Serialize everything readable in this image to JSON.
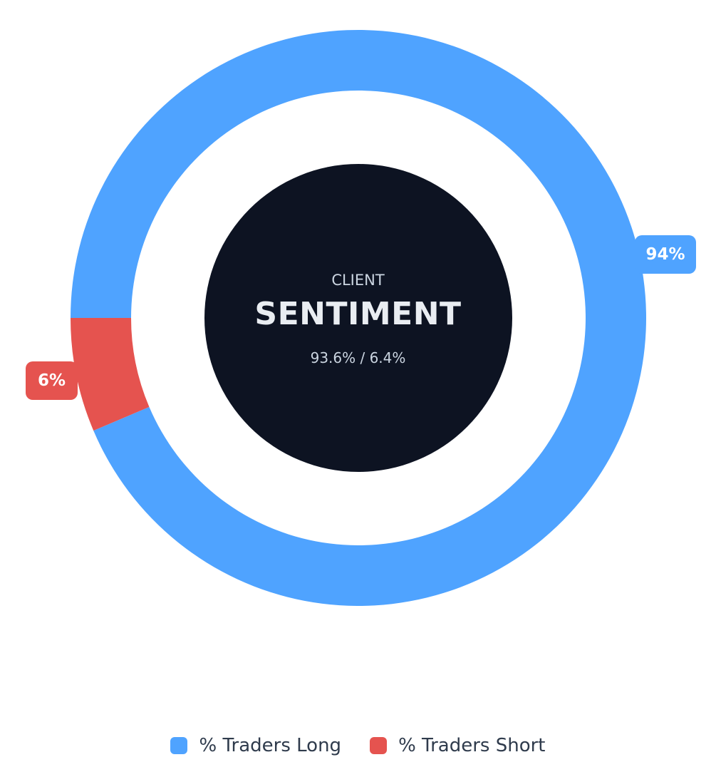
{
  "chart_data": {
    "type": "pie",
    "donut": true,
    "categories": [
      "% Traders Long",
      "% Traders Short"
    ],
    "values": [
      93.6,
      6.4
    ],
    "data_labels": [
      "94%",
      "6%"
    ],
    "colors": [
      "#4fa3ff",
      "#e5534f"
    ],
    "legend_position": "bottom",
    "center": {
      "kicker": "CLIENT",
      "title": "SENTIMENT",
      "subtitle": "93.6% / 6.4%"
    }
  },
  "legend": {
    "items": [
      {
        "label": "% Traders Long",
        "color": "#4fa3ff"
      },
      {
        "label": "% Traders Short",
        "color": "#e5534f"
      }
    ]
  }
}
